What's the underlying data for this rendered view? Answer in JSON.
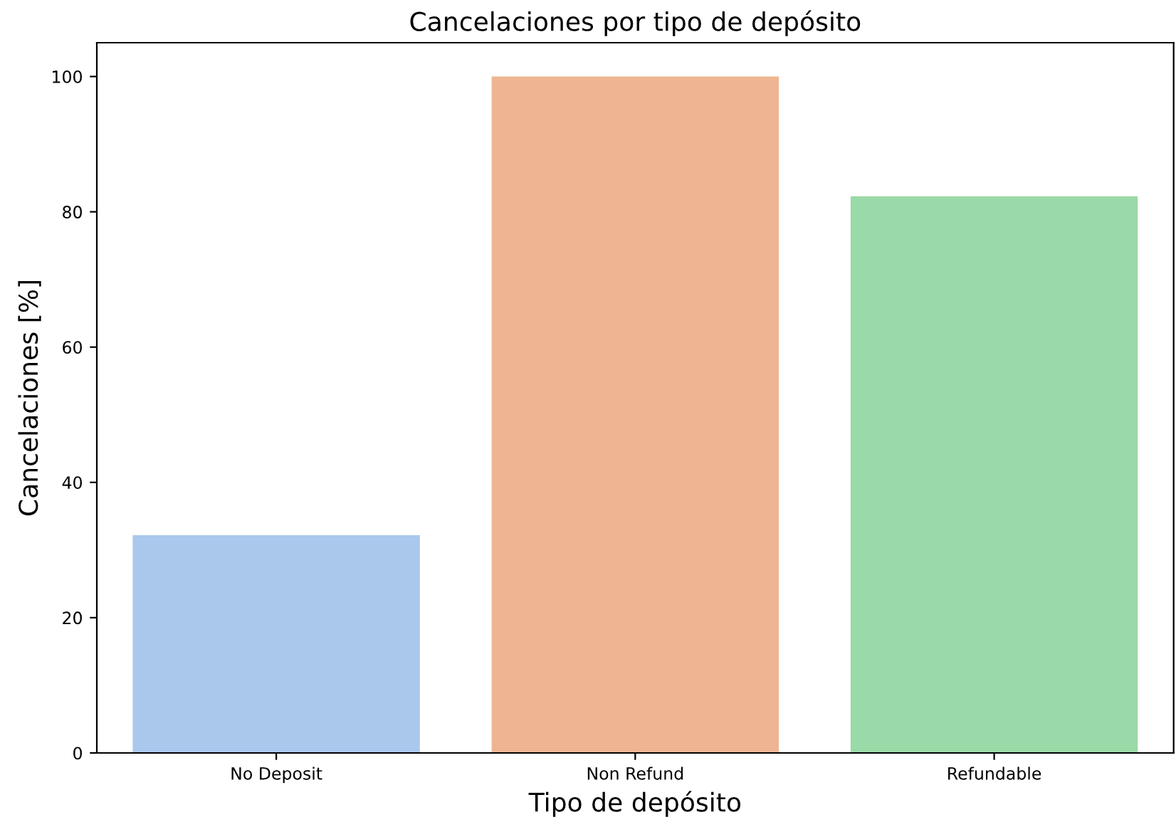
{
  "chart_data": {
    "type": "bar",
    "title": "Cancelaciones por tipo de depósito",
    "xlabel": "Tipo de depósito",
    "ylabel": "Cancelaciones [%]",
    "categories": [
      "No Deposit",
      "Non Refund",
      "Refundable"
    ],
    "values": [
      32.2,
      100,
      82.3
    ],
    "colors": [
      "#a9c8ec",
      "#efb592",
      "#9ad9a8"
    ],
    "ylim": [
      0,
      105
    ],
    "yticks": [
      0,
      20,
      40,
      60,
      80,
      100
    ],
    "grid": false,
    "legend": false
  }
}
